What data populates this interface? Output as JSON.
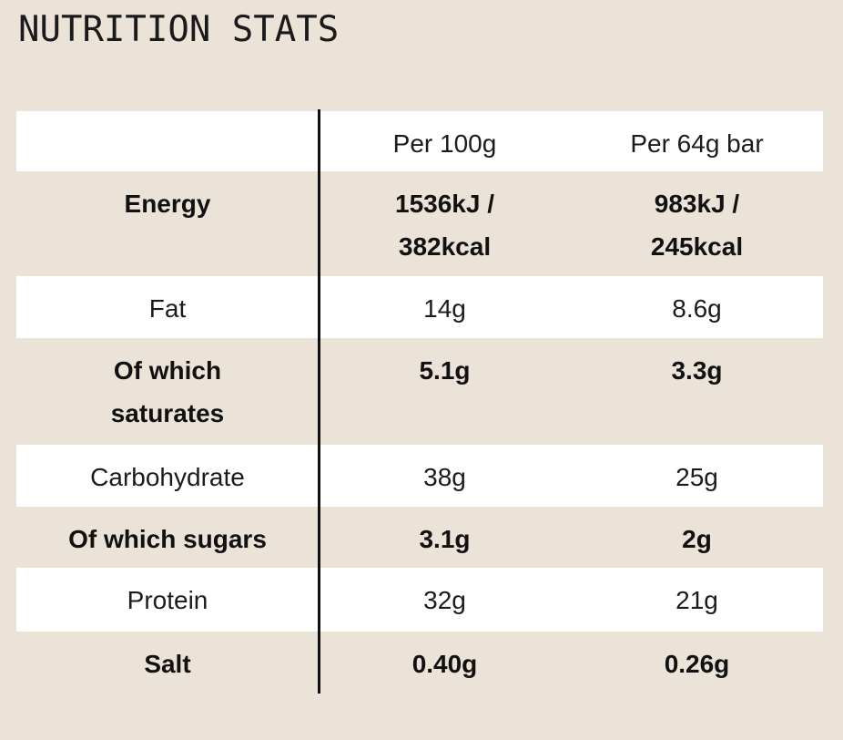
{
  "page": {
    "title": "NUTRITION STATS"
  },
  "colors": {
    "background": "#ebe3d7",
    "row_white": "#ffffff",
    "text": "#161616",
    "divider_line": "#101010"
  },
  "table": {
    "headers": [
      "",
      "Per 100g",
      "Per 64g bar"
    ],
    "rows": [
      {
        "label": "Energy",
        "per_100g": "1536kJ /\n382kcal",
        "per_64g_bar": "983kJ /\n245kcal"
      },
      {
        "label": "Fat",
        "per_100g": "14g",
        "per_64g_bar": "8.6g"
      },
      {
        "label": "Of which\nsaturates",
        "per_100g": "5.1g",
        "per_64g_bar": "3.3g"
      },
      {
        "label": "Carbohydrate",
        "per_100g": "38g",
        "per_64g_bar": "25g"
      },
      {
        "label": "Of which sugars",
        "per_100g": "3.1g",
        "per_64g_bar": "2g"
      },
      {
        "label": "Protein",
        "per_100g": "32g",
        "per_64g_bar": "21g"
      },
      {
        "label": "Salt",
        "per_100g": "0.40g",
        "per_64g_bar": "0.26g"
      }
    ]
  }
}
